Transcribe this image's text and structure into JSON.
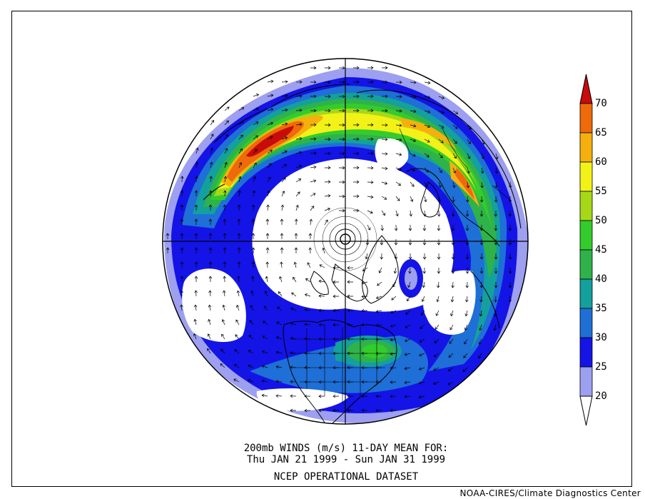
{
  "map": {
    "projection": "polar stereographic (Northern Hemisphere)",
    "variable": "200mb wind speed with wind vectors",
    "shading_colors": {
      "20-25": "#9d9ff0",
      "25-30": "#1414e6",
      "30-35": "#1e6fd6",
      "35-40": "#14a09c",
      "40-45": "#2fb24a",
      "45-50": "#34cc2c",
      "50-55": "#a6d818",
      "55-60": "#f2f218",
      "60-65": "#f5b00e",
      "65-70": "#ee6a0a",
      ">70": "#c80b0b"
    }
  },
  "colorbar": {
    "ticks": [
      "70",
      "65",
      "60",
      "55",
      "50",
      "45",
      "40",
      "35",
      "30",
      "25",
      "20"
    ],
    "colors": [
      "#c80b0b",
      "#ee6a0a",
      "#f5b00e",
      "#f2f218",
      "#a6d818",
      "#34cc2c",
      "#2fb24a",
      "#14a09c",
      "#1e6fd6",
      "#1414e6",
      "#9d9ff0",
      "#ffffff"
    ]
  },
  "caption": {
    "line1": "200mb WINDS (m/s)   11-DAY MEAN FOR:",
    "line2": "Thu JAN 21 1999 - Sun JAN 31 1999",
    "line3": "NCEP OPERATIONAL DATASET"
  },
  "credit": "NOAA-CIRES/Climate Diagnostics Center"
}
